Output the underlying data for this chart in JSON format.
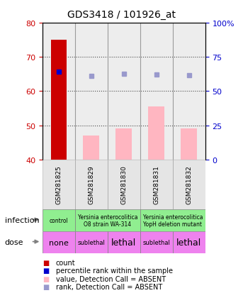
{
  "title": "GDS3418 / 101926_at",
  "samples": [
    "GSM281825",
    "GSM281829",
    "GSM281830",
    "GSM281831",
    "GSM281832"
  ],
  "count_values": [
    75.0,
    null,
    null,
    null,
    null
  ],
  "rank_values": [
    64.0,
    null,
    null,
    null,
    null
  ],
  "value_absent": [
    null,
    47.0,
    49.0,
    55.5,
    49.0
  ],
  "rank_absent": [
    null,
    61.0,
    62.5,
    62.0,
    61.5
  ],
  "ylim_left": [
    40,
    80
  ],
  "ylim_right": [
    0,
    100
  ],
  "yticks_left": [
    40,
    50,
    60,
    70,
    80
  ],
  "yticks_right": [
    0,
    25,
    50,
    75,
    100
  ],
  "ytick_labels_right": [
    "0",
    "25",
    "50",
    "75",
    "100%"
  ],
  "bar_color_count": "#cc0000",
  "bar_color_absent": "#ffb6c1",
  "dot_color_rank": "#0000cc",
  "dot_color_rank_absent": "#9999cc",
  "tick_color_left": "#cc0000",
  "tick_color_right": "#0000cc",
  "bar_width": 0.5,
  "sample_bg_color": "#cccccc",
  "infection_groups": [
    {
      "text": "control",
      "start": 0,
      "end": 1,
      "color": "#90ee90"
    },
    {
      "text": "Yersinia enterocolitica\nO8 strain WA-314",
      "start": 1,
      "end": 3,
      "color": "#90ee90"
    },
    {
      "text": "Yersinia enterocolitica\nYopH deletion mutant",
      "start": 3,
      "end": 5,
      "color": "#90ee90"
    }
  ],
  "dose_groups": [
    {
      "text": "none",
      "start": 0,
      "end": 1,
      "color": "#ee82ee",
      "fontsize": 8
    },
    {
      "text": "sublethal",
      "start": 1,
      "end": 2,
      "color": "#ee82ee",
      "fontsize": 6
    },
    {
      "text": "lethal",
      "start": 2,
      "end": 3,
      "color": "#ee82ee",
      "fontsize": 9
    },
    {
      "text": "sublethal",
      "start": 3,
      "end": 4,
      "color": "#ee82ee",
      "fontsize": 6
    },
    {
      "text": "lethal",
      "start": 4,
      "end": 5,
      "color": "#ee82ee",
      "fontsize": 9
    }
  ],
  "legend_items": [
    {
      "color": "#cc0000",
      "text": "count"
    },
    {
      "color": "#0000cc",
      "text": "percentile rank within the sample"
    },
    {
      "color": "#ffb6c1",
      "text": "value, Detection Call = ABSENT"
    },
    {
      "color": "#9999cc",
      "text": "rank, Detection Call = ABSENT"
    }
  ]
}
